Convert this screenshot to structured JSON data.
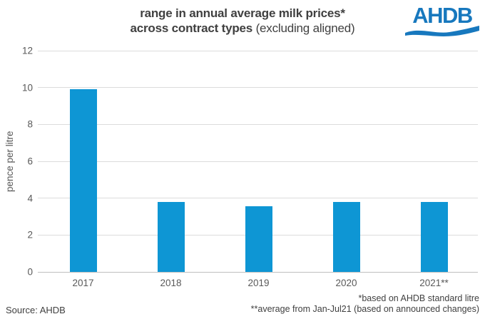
{
  "header": {
    "title_line1": "range in annual average milk prices*",
    "title_line2_bold": "across contract types",
    "title_line2_regular": " (excluding aligned)",
    "logo_text": "AHDB"
  },
  "chart_data": {
    "type": "bar",
    "title": "range in annual average milk prices* across contract types (excluding aligned)",
    "categories": [
      "2017",
      "2018",
      "2019",
      "2020",
      "2021**"
    ],
    "values": [
      9.9,
      3.8,
      3.55,
      3.78,
      3.8
    ],
    "xlabel": "",
    "ylabel": "pence per litre",
    "ylim": [
      0,
      12
    ],
    "yticks": [
      0,
      2,
      4,
      6,
      8,
      10,
      12
    ],
    "grid": true,
    "legend": "none",
    "bar_color": "#0e96d4"
  },
  "footer": {
    "source": "Source: AHDB",
    "note1": "*based on AHDB standard litre",
    "note2": "**average from Jan-Jul21 (based on announced changes)"
  },
  "colors": {
    "bar": "#0e96d4",
    "logo_blue": "#1778be",
    "title_text": "#404040",
    "axis_text": "#595959",
    "gridline": "#dcdcdc",
    "zero_line": "#bfbfbf",
    "footnote_text": "#404040"
  }
}
